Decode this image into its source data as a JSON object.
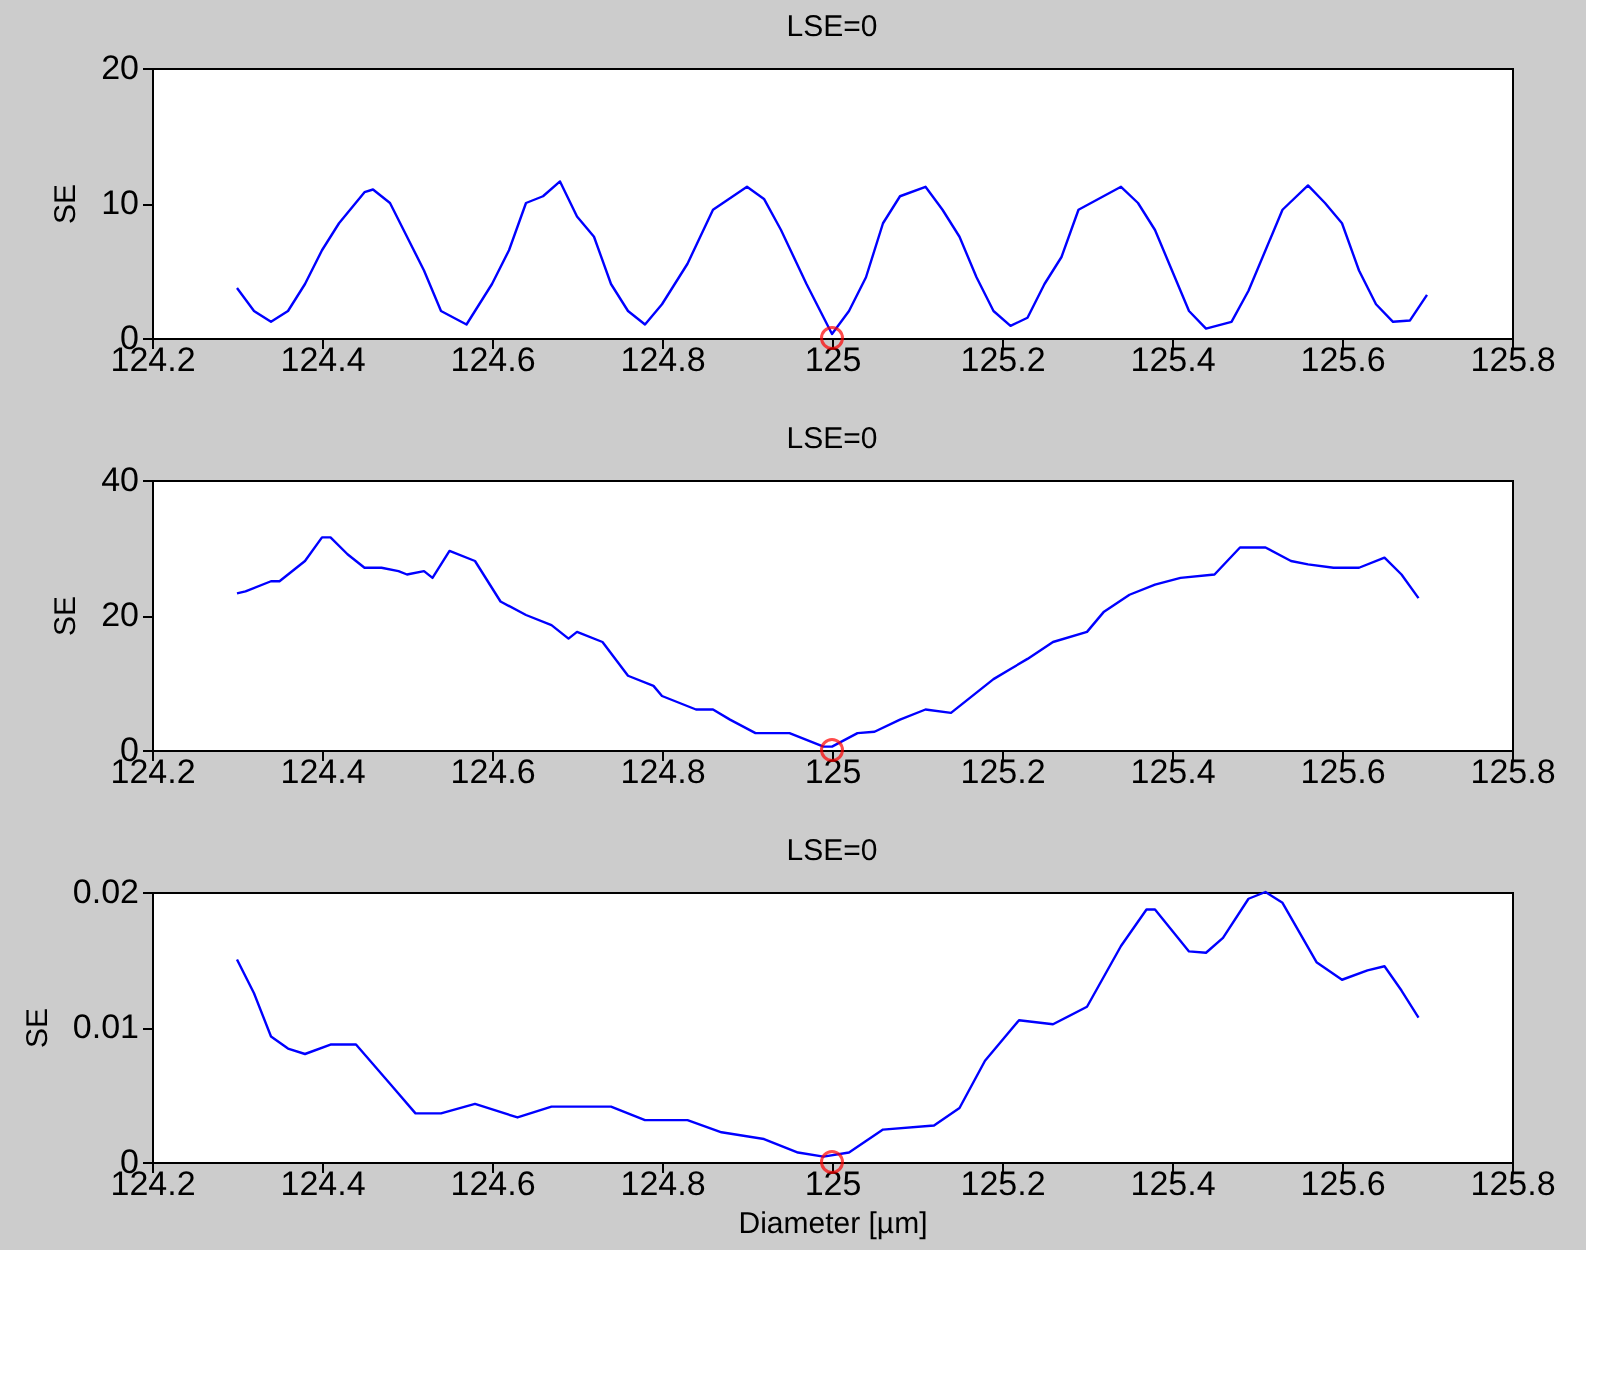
{
  "chart_data": [
    {
      "type": "line",
      "title": "LSE=0",
      "ylabel": "SE",
      "xlim": [
        124.2,
        125.8
      ],
      "xticks": [
        124.2,
        124.4,
        124.6,
        124.8,
        125,
        125.2,
        125.4,
        125.6,
        125.8
      ],
      "ylim": [
        0,
        20
      ],
      "yticks": [
        0,
        10,
        20
      ],
      "grid": false,
      "series": [
        {
          "color": "#0000ff",
          "line_style": "solid",
          "x": [
            124.3,
            124.32,
            124.34,
            124.36,
            124.38,
            124.4,
            124.42,
            124.45,
            124.46,
            124.48,
            124.5,
            124.52,
            124.54,
            124.57,
            124.6,
            124.62,
            124.64,
            124.66,
            124.68,
            124.7,
            124.72,
            124.74,
            124.76,
            124.78,
            124.8,
            124.83,
            124.86,
            124.9,
            124.92,
            124.94,
            124.97,
            125.0,
            125.02,
            125.04,
            125.06,
            125.08,
            125.11,
            125.13,
            125.15,
            125.17,
            125.19,
            125.21,
            125.23,
            125.25,
            125.27,
            125.29,
            125.34,
            125.36,
            125.38,
            125.4,
            125.42,
            125.44,
            125.47,
            125.49,
            125.51,
            125.53,
            125.56,
            125.58,
            125.6,
            125.62,
            125.64,
            125.66,
            125.68,
            125.7
          ],
          "values": [
            3.7,
            2,
            1.2,
            2,
            4,
            6.5,
            8.5,
            10.8,
            11,
            10,
            7.5,
            5,
            2,
            1,
            4,
            6.5,
            10,
            10.5,
            11.6,
            9,
            7.5,
            4,
            2,
            1,
            2.5,
            5.5,
            9.5,
            11.2,
            10.3,
            8,
            4,
            0.3,
            2,
            4.5,
            8.5,
            10.5,
            11.2,
            9.5,
            7.5,
            4.5,
            2,
            0.9,
            1.5,
            4,
            6,
            9.5,
            11.2,
            10,
            8,
            5,
            2,
            0.7,
            1.2,
            3.5,
            6.5,
            9.5,
            11.3,
            10,
            8.5,
            5,
            2.5,
            1.2,
            1.3,
            3.2
          ]
        },
        {
          "type": "scatter",
          "marker": "circle",
          "color": "#ff0000",
          "x": [
            125
          ],
          "values": [
            0
          ]
        }
      ]
    },
    {
      "type": "line",
      "title": "LSE=0",
      "ylabel": "SE",
      "xlim": [
        124.2,
        125.8
      ],
      "xticks": [
        124.2,
        124.4,
        124.6,
        124.8,
        125,
        125.2,
        125.4,
        125.6,
        125.8
      ],
      "ylim": [
        0,
        40
      ],
      "yticks": [
        0,
        20,
        40
      ],
      "grid": false,
      "series": [
        {
          "color": "#0000ff",
          "line_style": "solid",
          "x": [
            124.3,
            124.31,
            124.34,
            124.35,
            124.37,
            124.38,
            124.4,
            124.41,
            124.43,
            124.45,
            124.47,
            124.49,
            124.5,
            124.52,
            124.53,
            124.55,
            124.58,
            124.59,
            124.61,
            124.64,
            124.67,
            124.69,
            124.7,
            124.73,
            124.76,
            124.79,
            124.8,
            124.84,
            124.86,
            124.88,
            124.91,
            124.93,
            124.95,
            124.99,
            125.0,
            125.03,
            125.05,
            125.08,
            125.11,
            125.14,
            125.19,
            125.21,
            125.23,
            125.26,
            125.3,
            125.32,
            125.35,
            125.38,
            125.41,
            125.45,
            125.48,
            125.51,
            125.54,
            125.56,
            125.59,
            125.62,
            125.65,
            125.67,
            125.69
          ],
          "values": [
            23.2,
            23.5,
            25,
            25,
            27,
            28,
            31.5,
            31.5,
            29,
            27,
            27,
            26.5,
            26,
            26.5,
            25.5,
            29.5,
            28,
            26,
            22,
            20,
            18.5,
            16.5,
            17.5,
            16,
            11,
            9.5,
            8,
            6,
            6,
            4.5,
            2.5,
            2.5,
            2.5,
            0.5,
            0.5,
            2.5,
            2.7,
            4.5,
            6,
            5.5,
            10.5,
            12,
            13.5,
            16,
            17.5,
            20.5,
            23,
            24.5,
            25.5,
            26,
            30,
            30,
            28,
            27.5,
            27,
            27,
            28.5,
            26,
            22.5
          ]
        },
        {
          "type": "scatter",
          "marker": "circle",
          "color": "#ff0000",
          "x": [
            125
          ],
          "values": [
            0
          ]
        }
      ]
    },
    {
      "type": "line",
      "title": "LSE=0",
      "ylabel": "SE",
      "xlabel": "Diameter [µm]",
      "xlim": [
        124.2,
        125.8
      ],
      "xticks": [
        124.2,
        124.4,
        124.6,
        124.8,
        125,
        125.2,
        125.4,
        125.6,
        125.8
      ],
      "ylim": [
        0,
        0.02
      ],
      "yticks": [
        0,
        0.01,
        0.02
      ],
      "grid": false,
      "series": [
        {
          "color": "#0000ff",
          "line_style": "solid",
          "x": [
            124.3,
            124.32,
            124.34,
            124.36,
            124.38,
            124.41,
            124.44,
            124.48,
            124.51,
            124.54,
            124.58,
            124.63,
            124.67,
            124.74,
            124.78,
            124.83,
            124.87,
            124.92,
            124.96,
            124.99,
            125.02,
            125.06,
            125.12,
            125.15,
            125.18,
            125.22,
            125.26,
            125.3,
            125.34,
            125.37,
            125.38,
            125.42,
            125.44,
            125.46,
            125.49,
            125.51,
            125.53,
            125.57,
            125.6,
            125.63,
            125.65,
            125.67,
            125.69
          ],
          "values": [
            0.015,
            0.0125,
            0.0093,
            0.0084,
            0.008,
            0.0087,
            0.0087,
            0.0058,
            0.0036,
            0.0036,
            0.0043,
            0.0033,
            0.0041,
            0.0041,
            0.0031,
            0.0031,
            0.0022,
            0.0017,
            0.0007,
            0.0004,
            0.0007,
            0.0024,
            0.0027,
            0.004,
            0.0075,
            0.0105,
            0.0102,
            0.0115,
            0.016,
            0.0187,
            0.0187,
            0.0156,
            0.0155,
            0.0166,
            0.0195,
            0.02,
            0.0192,
            0.0148,
            0.0135,
            0.0142,
            0.0145,
            0.0127,
            0.0107
          ]
        },
        {
          "type": "scatter",
          "marker": "circle",
          "color": "#ff0000",
          "x": [
            125
          ],
          "values": [
            0
          ]
        }
      ]
    }
  ]
}
